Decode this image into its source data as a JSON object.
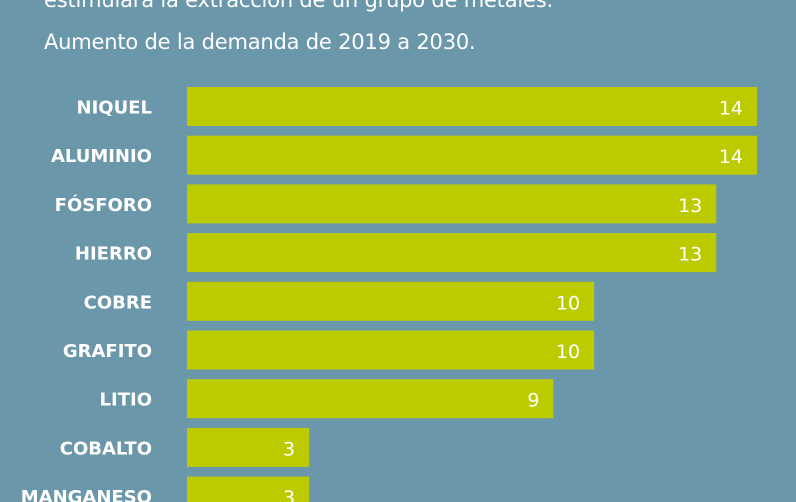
{
  "chart_data": {
    "type": "bar",
    "orientation": "horizontal",
    "title_lines": [
      "estimulará la extracción de un grupo de metales.",
      "Aumento de la demanda de 2019 a 2030."
    ],
    "categories": [
      "NIQUEL",
      "ALUMINIO",
      "FÓSFORO",
      "HIERRO",
      "COBRE",
      "GRAFITO",
      "LITIO",
      "COBALTO",
      "MANGANESO"
    ],
    "values": [
      14,
      14,
      13,
      13,
      10,
      10,
      9,
      3,
      3
    ],
    "xlim": [
      0,
      14
    ],
    "xlabel": "",
    "ylabel": "",
    "grid": false,
    "legend": "none"
  },
  "colors": {
    "background": "#6a97aa",
    "bar": "#bccb00",
    "text": "#ffffff"
  }
}
